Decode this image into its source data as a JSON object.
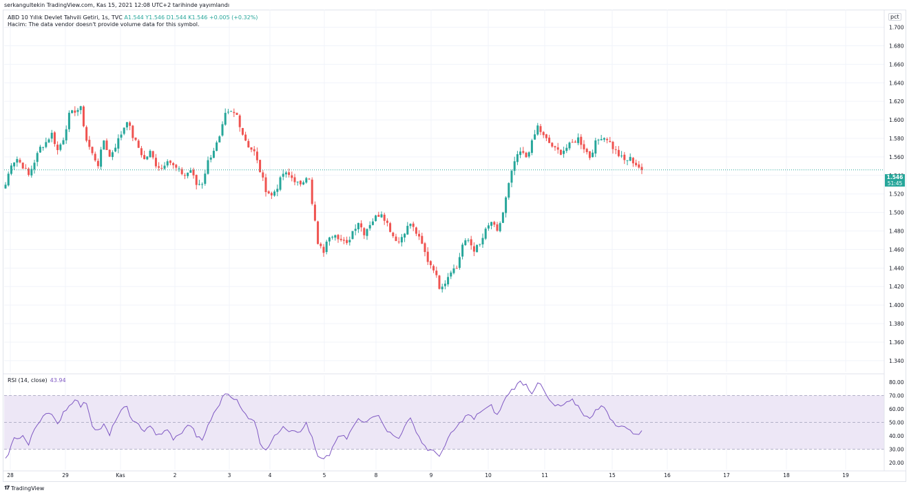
{
  "header": {
    "published_by": "serkangultekin TradingView.com, Kas 15, 2021 12:08 UTC+2 tarihinde yayımlandı"
  },
  "legend": {
    "symbol": "ABD 10 Yıllık Devlet Tahvili Getiri, 1s, TVC",
    "ohlc": "A1.544  Y1.546  D1.544  K1.546  +0.005 (+0.32%)",
    "volume_note": "Hacim: The data vendor doesn't provide volume data for this symbol."
  },
  "scale_button": "pct",
  "last_price": {
    "price": "1.546",
    "countdown": "51:45"
  },
  "rsi": {
    "label": "RSI (14, close)",
    "value": "43.94"
  },
  "footer": {
    "brand": "TradingView"
  },
  "colors": {
    "up": "#26a69a",
    "down": "#ef5350",
    "rsi_line": "#7e57c2",
    "rsi_band": "#ede7f6",
    "grid": "#f0f3fa",
    "text": "#131722"
  },
  "chart_data": [
    {
      "type": "candlestick",
      "title": "ABD 10 Yıllık Devlet Tahvili Getiri, 1s, TVC",
      "x_ticks": [
        "28",
        "29",
        "Kas",
        "2",
        "3",
        "4",
        "5",
        "8",
        "9",
        "10",
        "11",
        "15",
        "16",
        "17",
        "18",
        "19"
      ],
      "y_ticks": [
        "1.700",
        "1.680",
        "1.660",
        "1.640",
        "1.620",
        "1.600",
        "1.580",
        "1.560",
        "1.540",
        "1.520",
        "1.500",
        "1.480",
        "1.460",
        "1.440",
        "1.420",
        "1.400",
        "1.380",
        "1.360",
        "1.340"
      ],
      "ylim": [
        1.328,
        1.719
      ],
      "last_close": 1.546,
      "close_path": [
        [
          0,
          1.53
        ],
        [
          2,
          1.553
        ],
        [
          4,
          1.558
        ],
        [
          6,
          1.55
        ],
        [
          8,
          1.54
        ],
        [
          10,
          1.555
        ],
        [
          12,
          1.57
        ],
        [
          14,
          1.576
        ],
        [
          16,
          1.585
        ],
        [
          18,
          1.567
        ],
        [
          20,
          1.58
        ],
        [
          22,
          1.605
        ],
        [
          24,
          1.61
        ],
        [
          26,
          1.612
        ],
        [
          28,
          1.578
        ],
        [
          30,
          1.563
        ],
        [
          32,
          1.552
        ],
        [
          34,
          1.578
        ],
        [
          36,
          1.56
        ],
        [
          38,
          1.572
        ],
        [
          40,
          1.585
        ],
        [
          42,
          1.6
        ],
        [
          44,
          1.582
        ],
        [
          46,
          1.57
        ],
        [
          48,
          1.557
        ],
        [
          50,
          1.565
        ],
        [
          52,
          1.552
        ],
        [
          54,
          1.548
        ],
        [
          56,
          1.558
        ],
        [
          58,
          1.55
        ],
        [
          60,
          1.545
        ],
        [
          62,
          1.54
        ],
        [
          64,
          1.546
        ],
        [
          66,
          1.53
        ],
        [
          68,
          1.532
        ],
        [
          70,
          1.555
        ],
        [
          72,
          1.568
        ],
        [
          74,
          1.58
        ],
        [
          76,
          1.605
        ],
        [
          78,
          1.608
        ],
        [
          80,
          1.605
        ],
        [
          82,
          1.585
        ],
        [
          84,
          1.572
        ],
        [
          86,
          1.565
        ],
        [
          88,
          1.545
        ],
        [
          90,
          1.525
        ],
        [
          92,
          1.518
        ],
        [
          94,
          1.528
        ],
        [
          96,
          1.542
        ],
        [
          98,
          1.54
        ],
        [
          100,
          1.535
        ],
        [
          102,
          1.528
        ],
        [
          104,
          1.54
        ],
        [
          105,
          1.538
        ],
        [
          106,
          1.508
        ],
        [
          107,
          1.49
        ],
        [
          108,
          1.465
        ],
        [
          110,
          1.458
        ],
        [
          112,
          1.475
        ],
        [
          114,
          1.478
        ],
        [
          116,
          1.47
        ],
        [
          118,
          1.465
        ],
        [
          120,
          1.48
        ],
        [
          122,
          1.49
        ],
        [
          124,
          1.478
        ],
        [
          126,
          1.488
        ],
        [
          128,
          1.495
        ],
        [
          130,
          1.5
        ],
        [
          132,
          1.488
        ],
        [
          134,
          1.475
        ],
        [
          136,
          1.468
        ],
        [
          138,
          1.48
        ],
        [
          140,
          1.488
        ],
        [
          142,
          1.478
        ],
        [
          144,
          1.465
        ],
        [
          146,
          1.448
        ],
        [
          148,
          1.44
        ],
        [
          150,
          1.42
        ],
        [
          152,
          1.425
        ],
        [
          154,
          1.438
        ],
        [
          156,
          1.44
        ],
        [
          158,
          1.465
        ],
        [
          160,
          1.47
        ],
        [
          162,
          1.46
        ],
        [
          164,
          1.465
        ],
        [
          166,
          1.48
        ],
        [
          168,
          1.49
        ],
        [
          170,
          1.478
        ],
        [
          172,
          1.5
        ],
        [
          174,
          1.53
        ],
        [
          176,
          1.555
        ],
        [
          178,
          1.565
        ],
        [
          180,
          1.56
        ],
        [
          182,
          1.575
        ],
        [
          184,
          1.593
        ],
        [
          186,
          1.582
        ],
        [
          188,
          1.575
        ],
        [
          190,
          1.568
        ],
        [
          192,
          1.565
        ],
        [
          194,
          1.57
        ],
        [
          196,
          1.575
        ],
        [
          198,
          1.58
        ],
        [
          200,
          1.57
        ],
        [
          202,
          1.56
        ],
        [
          204,
          1.575
        ],
        [
          206,
          1.582
        ],
        [
          208,
          1.58
        ],
        [
          210,
          1.57
        ],
        [
          212,
          1.562
        ],
        [
          214,
          1.556
        ],
        [
          216,
          1.558
        ],
        [
          218,
          1.552
        ],
        [
          220,
          1.546
        ]
      ]
    },
    {
      "type": "line",
      "title": "RSI (14, close)",
      "y_ticks": [
        "80.00",
        "70.00",
        "60.00",
        "50.00",
        "40.00",
        "30.00",
        "20.00"
      ],
      "ylim": [
        15,
        85
      ],
      "bands": [
        30,
        50,
        70
      ],
      "last_value": 43.94,
      "values_path": [
        [
          0,
          22
        ],
        [
          3,
          38
        ],
        [
          6,
          40
        ],
        [
          8,
          33
        ],
        [
          10,
          45
        ],
        [
          12,
          52
        ],
        [
          14,
          58
        ],
        [
          16,
          55
        ],
        [
          18,
          48
        ],
        [
          20,
          58
        ],
        [
          22,
          62
        ],
        [
          24,
          68
        ],
        [
          26,
          62
        ],
        [
          28,
          65
        ],
        [
          30,
          48
        ],
        [
          32,
          44
        ],
        [
          34,
          48
        ],
        [
          36,
          40
        ],
        [
          38,
          52
        ],
        [
          40,
          58
        ],
        [
          42,
          62
        ],
        [
          44,
          50
        ],
        [
          46,
          48
        ],
        [
          48,
          44
        ],
        [
          50,
          48
        ],
        [
          52,
          40
        ],
        [
          54,
          42
        ],
        [
          56,
          44
        ],
        [
          58,
          38
        ],
        [
          60,
          40
        ],
        [
          62,
          46
        ],
        [
          64,
          48
        ],
        [
          66,
          40
        ],
        [
          68,
          36
        ],
        [
          70,
          48
        ],
        [
          72,
          56
        ],
        [
          74,
          64
        ],
        [
          76,
          72
        ],
        [
          78,
          70
        ],
        [
          80,
          66
        ],
        [
          82,
          58
        ],
        [
          84,
          54
        ],
        [
          86,
          52
        ],
        [
          88,
          35
        ],
        [
          90,
          30
        ],
        [
          92,
          36
        ],
        [
          94,
          42
        ],
        [
          96,
          48
        ],
        [
          98,
          44
        ],
        [
          100,
          45
        ],
        [
          102,
          42
        ],
        [
          104,
          50
        ],
        [
          106,
          38
        ],
        [
          108,
          24
        ],
        [
          110,
          22
        ],
        [
          112,
          26
        ],
        [
          114,
          36
        ],
        [
          116,
          40
        ],
        [
          118,
          38
        ],
        [
          120,
          46
        ],
        [
          122,
          52
        ],
        [
          124,
          50
        ],
        [
          126,
          54
        ],
        [
          128,
          56
        ],
        [
          130,
          52
        ],
        [
          132,
          44
        ],
        [
          134,
          40
        ],
        [
          136,
          38
        ],
        [
          138,
          48
        ],
        [
          140,
          52
        ],
        [
          142,
          44
        ],
        [
          144,
          35
        ],
        [
          146,
          30
        ],
        [
          148,
          28
        ],
        [
          150,
          26
        ],
        [
          152,
          32
        ],
        [
          154,
          42
        ],
        [
          156,
          46
        ],
        [
          158,
          52
        ],
        [
          160,
          56
        ],
        [
          162,
          52
        ],
        [
          164,
          58
        ],
        [
          166,
          60
        ],
        [
          168,
          62
        ],
        [
          170,
          55
        ],
        [
          172,
          64
        ],
        [
          174,
          72
        ],
        [
          176,
          76
        ],
        [
          178,
          80
        ],
        [
          180,
          78
        ],
        [
          182,
          72
        ],
        [
          184,
          80
        ],
        [
          186,
          74
        ],
        [
          188,
          66
        ],
        [
          190,
          62
        ],
        [
          192,
          62
        ],
        [
          194,
          64
        ],
        [
          196,
          66
        ],
        [
          198,
          62
        ],
        [
          200,
          56
        ],
        [
          202,
          52
        ],
        [
          204,
          60
        ],
        [
          206,
          62
        ],
        [
          208,
          58
        ],
        [
          210,
          50
        ],
        [
          212,
          46
        ],
        [
          214,
          48
        ],
        [
          216,
          44
        ],
        [
          218,
          40
        ],
        [
          220,
          43.94
        ]
      ]
    }
  ]
}
